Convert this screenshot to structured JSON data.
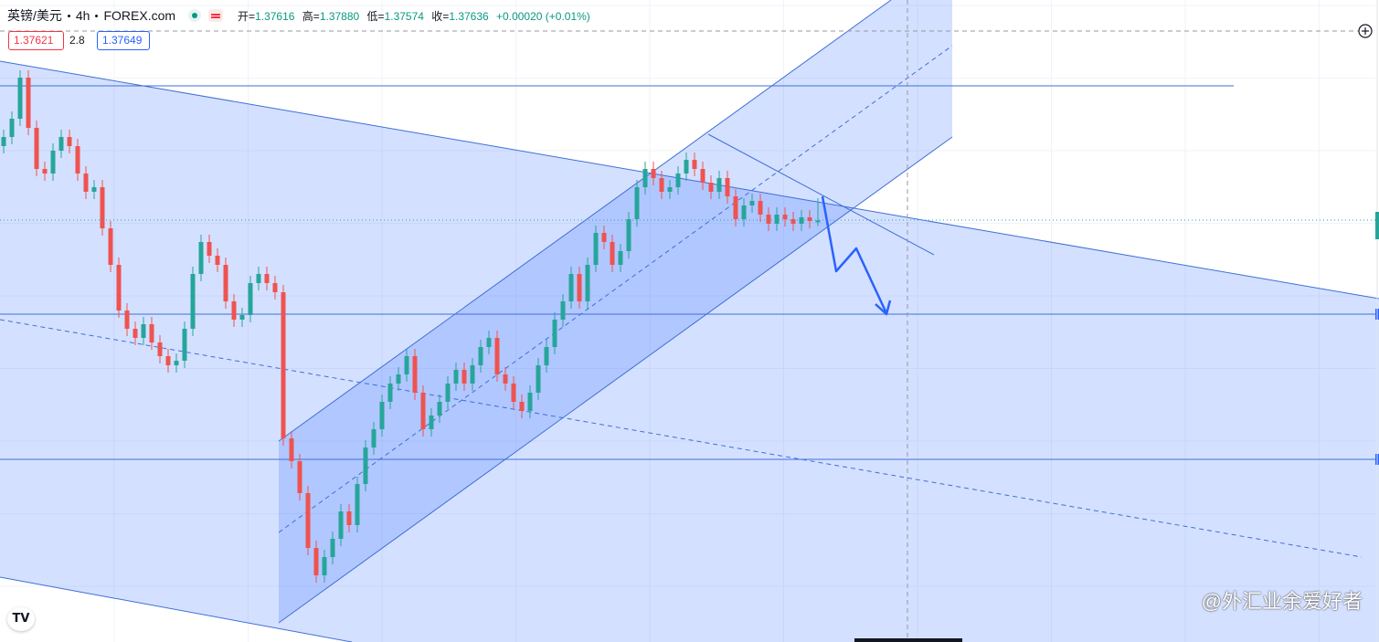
{
  "header": {
    "symbol": "英镑/美元",
    "interval": "4h",
    "source": "FOREX.com",
    "open_label": "开=",
    "open": 1.37616,
    "high_label": "高=",
    "high": {
      "value": 1.3788,
      "label": "1.37880"
    },
    "low_label": "低=",
    "low": 1.37574,
    "close_label": "收=",
    "close": 1.37636,
    "change": "+0.00020 (+0.01%)",
    "bid": 1.37621,
    "spread": 2.8,
    "ask": 1.37649
  },
  "watermark": "@外汇业余爱好者",
  "chart_data": {
    "type": "candlestick",
    "up_color": "#26a69a",
    "down_color": "#ef5350",
    "grid": true,
    "ylim": [
      1.3302,
      1.4005
    ],
    "open": [
      1.3845,
      1.3855,
      1.3875,
      1.392,
      1.3865,
      1.382,
      1.3815,
      1.384,
      1.3855,
      1.3845,
      1.3815,
      1.3795,
      1.38,
      1.3755,
      1.3715,
      1.3665,
      1.3645,
      1.3635,
      1.365,
      1.363,
      1.3615,
      1.3605,
      1.361,
      1.3645,
      1.3705,
      1.374,
      1.3725,
      1.3715,
      1.3675,
      1.3655,
      1.366,
      1.3695,
      1.3705,
      1.3695,
      1.3685,
      1.3525,
      1.35,
      1.3465,
      1.3405,
      1.3375,
      1.3395,
      1.3415,
      1.3445,
      1.343,
      1.3475,
      1.3515,
      1.3535,
      1.3565,
      1.3585,
      1.3595,
      1.3615,
      1.3575,
      1.3535,
      1.355,
      1.3565,
      1.3585,
      1.36,
      1.3585,
      1.3605,
      1.3625,
      1.3635,
      1.3595,
      1.3585,
      1.3565,
      1.3555,
      1.3575,
      1.3605,
      1.3625,
      1.3655,
      1.3675,
      1.3705,
      1.3675,
      1.3715,
      1.375,
      1.374,
      1.3715,
      1.373,
      1.3765,
      1.38,
      1.382,
      1.381,
      1.3795,
      1.38,
      1.3815,
      1.383,
      1.382,
      1.3805,
      1.3795,
      1.381,
      1.379,
      1.3765,
      1.378,
      1.3785,
      1.377,
      1.376,
      1.377,
      1.3765,
      1.376,
      1.3767,
      1.37616
    ],
    "high": [
      1.3863,
      1.3883,
      1.3928,
      1.3928,
      1.3873,
      1.3828,
      1.3848,
      1.3863,
      1.3863,
      1.3853,
      1.3823,
      1.3808,
      1.3808,
      1.3763,
      1.3723,
      1.3673,
      1.3653,
      1.3658,
      1.3658,
      1.3638,
      1.3623,
      1.3618,
      1.3653,
      1.3713,
      1.3748,
      1.3748,
      1.3733,
      1.3723,
      1.3683,
      1.3668,
      1.3703,
      1.3713,
      1.3713,
      1.3703,
      1.3693,
      1.3533,
      1.3508,
      1.3473,
      1.3413,
      1.3403,
      1.3423,
      1.3453,
      1.3453,
      1.3483,
      1.3523,
      1.3543,
      1.3573,
      1.3593,
      1.3603,
      1.3623,
      1.3623,
      1.3583,
      1.3558,
      1.3573,
      1.3593,
      1.3608,
      1.3608,
      1.3613,
      1.3633,
      1.3643,
      1.3643,
      1.3603,
      1.3593,
      1.3573,
      1.3583,
      1.3613,
      1.3633,
      1.3663,
      1.3683,
      1.3713,
      1.3713,
      1.3723,
      1.3758,
      1.3758,
      1.3748,
      1.3738,
      1.3773,
      1.3808,
      1.3828,
      1.3828,
      1.3818,
      1.3808,
      1.3823,
      1.3838,
      1.3838,
      1.3828,
      1.3813,
      1.3818,
      1.3818,
      1.3798,
      1.3788,
      1.3793,
      1.3793,
      1.3778,
      1.3778,
      1.3778,
      1.3773,
      1.3775,
      1.3775,
      1.3788
    ],
    "low": [
      1.3837,
      1.3847,
      1.3867,
      1.3857,
      1.3812,
      1.3807,
      1.3807,
      1.3832,
      1.3837,
      1.3807,
      1.3787,
      1.3787,
      1.3747,
      1.3707,
      1.3657,
      1.3637,
      1.3627,
      1.3627,
      1.3622,
      1.3607,
      1.3597,
      1.3597,
      1.3602,
      1.3637,
      1.3697,
      1.3717,
      1.3707,
      1.3667,
      1.3647,
      1.3647,
      1.3652,
      1.3687,
      1.3687,
      1.3677,
      1.3517,
      1.3492,
      1.3457,
      1.3397,
      1.3367,
      1.3367,
      1.3387,
      1.3407,
      1.3422,
      1.3422,
      1.3467,
      1.3507,
      1.3527,
      1.3557,
      1.3577,
      1.3587,
      1.3567,
      1.3527,
      1.3527,
      1.3542,
      1.3557,
      1.3577,
      1.3577,
      1.3577,
      1.3597,
      1.3617,
      1.3587,
      1.3577,
      1.3557,
      1.3547,
      1.3547,
      1.3567,
      1.3597,
      1.3617,
      1.3647,
      1.3667,
      1.3667,
      1.3667,
      1.3707,
      1.3732,
      1.3707,
      1.3707,
      1.3722,
      1.3757,
      1.3792,
      1.3802,
      1.3787,
      1.3787,
      1.3792,
      1.3807,
      1.3812,
      1.3797,
      1.3787,
      1.3787,
      1.3782,
      1.3757,
      1.3757,
      1.3772,
      1.3762,
      1.3752,
      1.3752,
      1.3757,
      1.3752,
      1.3752,
      1.3755,
      1.37574
    ],
    "close": [
      1.3855,
      1.3875,
      1.392,
      1.3865,
      1.382,
      1.3815,
      1.384,
      1.3855,
      1.3845,
      1.3815,
      1.3795,
      1.38,
      1.3755,
      1.3715,
      1.3665,
      1.3645,
      1.3635,
      1.365,
      1.363,
      1.3615,
      1.3605,
      1.361,
      1.3645,
      1.3705,
      1.374,
      1.3725,
      1.3715,
      1.3675,
      1.3655,
      1.366,
      1.3695,
      1.3705,
      1.3695,
      1.3685,
      1.3525,
      1.35,
      1.3465,
      1.3405,
      1.3375,
      1.3395,
      1.3415,
      1.3445,
      1.343,
      1.3475,
      1.3515,
      1.3535,
      1.3565,
      1.3585,
      1.3595,
      1.3615,
      1.3575,
      1.3535,
      1.355,
      1.3565,
      1.3585,
      1.36,
      1.3585,
      1.3605,
      1.3625,
      1.3635,
      1.3595,
      1.3585,
      1.3565,
      1.3555,
      1.3575,
      1.3605,
      1.3625,
      1.3655,
      1.3675,
      1.3705,
      1.3675,
      1.3715,
      1.375,
      1.374,
      1.3715,
      1.373,
      1.3765,
      1.38,
      1.382,
      1.381,
      1.3795,
      1.38,
      1.3815,
      1.383,
      1.382,
      1.3805,
      1.3795,
      1.381,
      1.379,
      1.3765,
      1.378,
      1.3785,
      1.377,
      1.376,
      1.377,
      1.3765,
      1.376,
      1.3767,
      1.3763,
      1.37636
    ]
  }
}
